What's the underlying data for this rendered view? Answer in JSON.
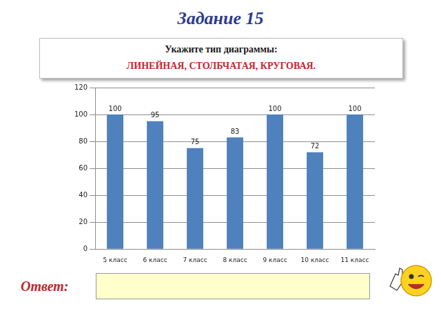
{
  "header": {
    "title": "Задание 15"
  },
  "task": {
    "text": "Укажите тип диаграммы:",
    "options": "ЛИНЕЙНАЯ, СТОЛБЧАТАЯ, КРУГОВАЯ."
  },
  "chart_data": {
    "type": "bar",
    "categories": [
      "5 класс",
      "6 класс",
      "7 класс",
      "8 класс",
      "9 класс",
      "10 класс",
      "11 класс"
    ],
    "values": [
      100,
      95,
      75,
      83,
      100,
      72,
      100
    ],
    "color": "#4f81bd",
    "ylim": [
      0,
      120
    ],
    "yticks": [
      0,
      20,
      40,
      60,
      80,
      100,
      120
    ],
    "grid": true,
    "data_labels": true
  },
  "answer": {
    "label": "Ответ:"
  }
}
